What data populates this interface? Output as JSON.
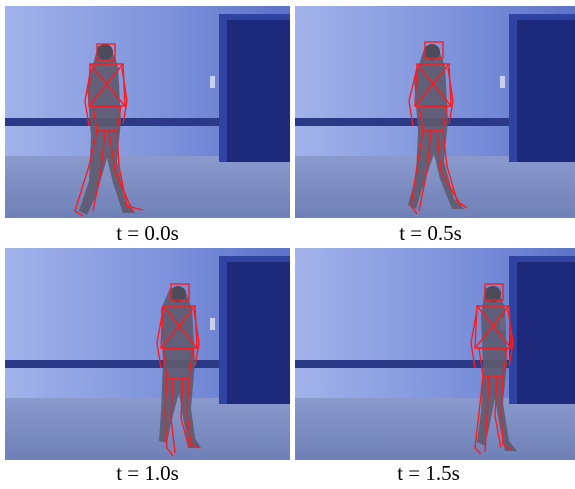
{
  "figure": {
    "frames": [
      {
        "caption": "t = 0.0s",
        "time_s": 0.0
      },
      {
        "caption": "t = 0.5s",
        "time_s": 0.5
      },
      {
        "caption": "t = 1.0s",
        "time_s": 1.0
      },
      {
        "caption": "t = 1.5s",
        "time_s": 1.5
      }
    ]
  },
  "colors": {
    "wall": "#6c84d2",
    "wall_light": "#9fb0e6",
    "rail": "#2b3a86",
    "door": "#1d2a7c",
    "door_frame": "#3143a0",
    "floor": "#7d8fc4",
    "skeleton": "#ff1a1a",
    "person": "#5e5a6e"
  }
}
